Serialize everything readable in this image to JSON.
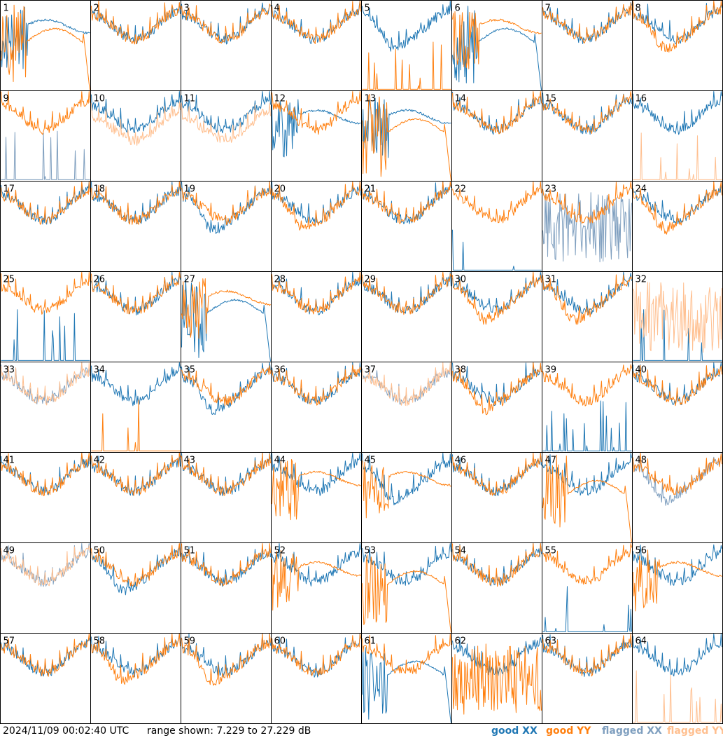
{
  "footer": {
    "timestamp": "2024/11/09 00:02:40 UTC",
    "range_text": "range shown: 7.229 to 27.229 dB",
    "legend": {
      "good_xx": "good XX",
      "good_yy": "good YY",
      "flagged_xx": "flagged XX",
      "flagged_yy": "flagged YY"
    }
  },
  "colors": {
    "good_xx": "#1f77b4",
    "good_yy": "#ff7f0e",
    "flagged_xx": "#7f9fbf",
    "flagged_yy": "#ffbf8f",
    "panel_border": "#000000",
    "background": "#ffffff"
  },
  "chart_data": {
    "type": "line",
    "grid_rows": 8,
    "grid_cols": 8,
    "y_range_db": [
      7.229,
      27.229
    ],
    "panels": [
      {
        "id": "1",
        "xx": "good",
        "yy": "good",
        "xx_shape": "dip_noisy",
        "yy_shape": "edge_dropout"
      },
      {
        "id": "2",
        "xx": "good",
        "yy": "good",
        "xx_shape": "normal",
        "yy_shape": "normal"
      },
      {
        "id": "3",
        "xx": "good",
        "yy": "good",
        "xx_shape": "normal",
        "yy_shape": "normal"
      },
      {
        "id": "4",
        "xx": "good",
        "yy": "good",
        "xx_shape": "normal",
        "yy_shape": "normal"
      },
      {
        "id": "5",
        "xx": "good",
        "yy": "good",
        "xx_shape": "deep_dip",
        "yy_shape": "spikes_floor"
      },
      {
        "id": "6",
        "xx": "good",
        "yy": "good",
        "xx_shape": "edge_dropout",
        "yy_shape": "dip_noisy"
      },
      {
        "id": "7",
        "xx": "good",
        "yy": "good",
        "xx_shape": "normal",
        "yy_shape": "normal"
      },
      {
        "id": "8",
        "xx": "good",
        "yy": "good",
        "xx_shape": "normal",
        "yy_shape": "deep_dip"
      },
      {
        "id": "9",
        "xx": "flagged",
        "yy": "good",
        "xx_shape": "spikes_floor",
        "yy_shape": "normal"
      },
      {
        "id": "10",
        "xx": "good",
        "yy": "flagged",
        "xx_shape": "normal",
        "yy_shape": "low_offset"
      },
      {
        "id": "11",
        "xx": "good",
        "yy": "flagged",
        "xx_shape": "normal",
        "yy_shape": "low_offset"
      },
      {
        "id": "12",
        "xx": "good",
        "yy": "good",
        "xx_shape": "dip_noisy",
        "yy_shape": "normal"
      },
      {
        "id": "13",
        "xx": "good",
        "yy": "good",
        "xx_shape": "dip_noisy",
        "yy_shape": "edge_dropout"
      },
      {
        "id": "14",
        "xx": "good",
        "yy": "good",
        "xx_shape": "normal",
        "yy_shape": "normal"
      },
      {
        "id": "15",
        "xx": "good",
        "yy": "good",
        "xx_shape": "normal",
        "yy_shape": "normal"
      },
      {
        "id": "16",
        "xx": "good",
        "yy": "flagged",
        "xx_shape": "normal",
        "yy_shape": "spikes_floor"
      },
      {
        "id": "17",
        "xx": "good",
        "yy": "good",
        "xx_shape": "normal",
        "yy_shape": "normal"
      },
      {
        "id": "18",
        "xx": "good",
        "yy": "good",
        "xx_shape": "normal",
        "yy_shape": "normal"
      },
      {
        "id": "19",
        "xx": "good",
        "yy": "good",
        "xx_shape": "deep_dip",
        "yy_shape": "normal"
      },
      {
        "id": "20",
        "xx": "good",
        "yy": "good",
        "xx_shape": "normal",
        "yy_shape": "deep_dip"
      },
      {
        "id": "21",
        "xx": "good",
        "yy": "good",
        "xx_shape": "normal",
        "yy_shape": "normal"
      },
      {
        "id": "22",
        "xx": "good",
        "yy": "good",
        "xx_shape": "spikes_floor",
        "yy_shape": "normal"
      },
      {
        "id": "23",
        "xx": "flagged",
        "yy": "good",
        "xx_shape": "chaotic",
        "yy_shape": "normal"
      },
      {
        "id": "24",
        "xx": "good",
        "yy": "good",
        "xx_shape": "normal",
        "yy_shape": "deep_dip"
      },
      {
        "id": "25",
        "xx": "good",
        "yy": "good",
        "xx_shape": "spikes_floor",
        "yy_shape": "normal"
      },
      {
        "id": "26",
        "xx": "good",
        "yy": "good",
        "xx_shape": "normal",
        "yy_shape": "normal"
      },
      {
        "id": "27",
        "xx": "good",
        "yy": "good",
        "xx_shape": "edge_dropout",
        "yy_shape": "dip_noisy"
      },
      {
        "id": "28",
        "xx": "good",
        "yy": "good",
        "xx_shape": "normal",
        "yy_shape": "normal"
      },
      {
        "id": "29",
        "xx": "good",
        "yy": "good",
        "xx_shape": "normal",
        "yy_shape": "normal"
      },
      {
        "id": "30",
        "xx": "good",
        "yy": "good",
        "xx_shape": "normal",
        "yy_shape": "deep_dip"
      },
      {
        "id": "31",
        "xx": "good",
        "yy": "good",
        "xx_shape": "normal",
        "yy_shape": "deep_dip"
      },
      {
        "id": "32",
        "xx": "good",
        "yy": "flagged",
        "xx_shape": "spikes_floor",
        "yy_shape": "chaotic"
      },
      {
        "id": "33",
        "xx": "flagged",
        "yy": "flagged",
        "xx_shape": "normal",
        "yy_shape": "normal"
      },
      {
        "id": "34",
        "xx": "good",
        "yy": "good",
        "xx_shape": "normal",
        "yy_shape": "spikes_floor"
      },
      {
        "id": "35",
        "xx": "good",
        "yy": "good",
        "xx_shape": "deep_dip",
        "yy_shape": "normal"
      },
      {
        "id": "36",
        "xx": "good",
        "yy": "good",
        "xx_shape": "normal",
        "yy_shape": "normal"
      },
      {
        "id": "37",
        "xx": "flagged",
        "yy": "flagged",
        "xx_shape": "normal",
        "yy_shape": "normal"
      },
      {
        "id": "38",
        "xx": "good",
        "yy": "good",
        "xx_shape": "normal",
        "yy_shape": "deep_dip"
      },
      {
        "id": "39",
        "xx": "good",
        "yy": "good",
        "xx_shape": "spikes_floor",
        "yy_shape": "normal"
      },
      {
        "id": "40",
        "xx": "good",
        "yy": "good",
        "xx_shape": "normal",
        "yy_shape": "normal"
      },
      {
        "id": "41",
        "xx": "good",
        "yy": "good",
        "xx_shape": "normal",
        "yy_shape": "normal"
      },
      {
        "id": "42",
        "xx": "good",
        "yy": "good",
        "xx_shape": "normal",
        "yy_shape": "normal"
      },
      {
        "id": "43",
        "xx": "good",
        "yy": "good",
        "xx_shape": "normal",
        "yy_shape": "normal"
      },
      {
        "id": "44",
        "xx": "good",
        "yy": "good",
        "xx_shape": "normal",
        "yy_shape": "dip_noisy"
      },
      {
        "id": "45",
        "xx": "good",
        "yy": "good",
        "xx_shape": "deep_dip",
        "yy_shape": "dip_noisy"
      },
      {
        "id": "46",
        "xx": "good",
        "yy": "good",
        "xx_shape": "normal",
        "yy_shape": "normal"
      },
      {
        "id": "47",
        "xx": "good",
        "yy": "good",
        "xx_shape": "normal",
        "yy_shape": "edge_dropout"
      },
      {
        "id": "48",
        "xx": "flagged",
        "yy": "good",
        "xx_shape": "deep_dip",
        "yy_shape": "normal"
      },
      {
        "id": "49",
        "xx": "flagged",
        "yy": "flagged",
        "xx_shape": "normal",
        "yy_shape": "normal"
      },
      {
        "id": "50",
        "xx": "good",
        "yy": "good",
        "xx_shape": "deep_dip",
        "yy_shape": "normal"
      },
      {
        "id": "51",
        "xx": "good",
        "yy": "good",
        "xx_shape": "normal",
        "yy_shape": "normal"
      },
      {
        "id": "52",
        "xx": "good",
        "yy": "good",
        "xx_shape": "normal",
        "yy_shape": "dip_noisy"
      },
      {
        "id": "53",
        "xx": "good",
        "yy": "good",
        "xx_shape": "normal",
        "yy_shape": "edge_dropout"
      },
      {
        "id": "54",
        "xx": "good",
        "yy": "good",
        "xx_shape": "normal",
        "yy_shape": "normal"
      },
      {
        "id": "55",
        "xx": "good",
        "yy": "good",
        "xx_shape": "spikes_floor",
        "yy_shape": "normal"
      },
      {
        "id": "56",
        "xx": "good",
        "yy": "good",
        "xx_shape": "normal",
        "yy_shape": "dip_noisy"
      },
      {
        "id": "57",
        "xx": "good",
        "yy": "good",
        "xx_shape": "normal",
        "yy_shape": "normal"
      },
      {
        "id": "58",
        "xx": "good",
        "yy": "good",
        "xx_shape": "normal",
        "yy_shape": "deep_dip"
      },
      {
        "id": "59",
        "xx": "good",
        "yy": "good",
        "xx_shape": "normal",
        "yy_shape": "deep_dip"
      },
      {
        "id": "60",
        "xx": "good",
        "yy": "good",
        "xx_shape": "normal",
        "yy_shape": "normal"
      },
      {
        "id": "61",
        "xx": "good",
        "yy": "good",
        "xx_shape": "edge_dropout",
        "yy_shape": "normal"
      },
      {
        "id": "62",
        "xx": "good",
        "yy": "good",
        "xx_shape": "normal",
        "yy_shape": "chaotic"
      },
      {
        "id": "63",
        "xx": "good",
        "yy": "good",
        "xx_shape": "normal",
        "yy_shape": "normal"
      },
      {
        "id": "64",
        "xx": "good",
        "yy": "flagged",
        "xx_shape": "normal",
        "yy_shape": "spikes_floor"
      }
    ]
  }
}
